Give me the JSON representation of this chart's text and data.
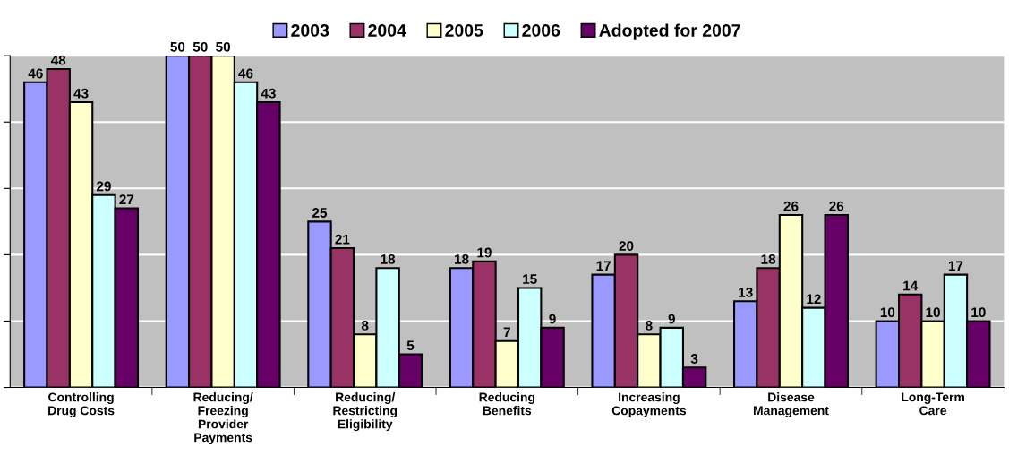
{
  "chart_data": {
    "type": "bar",
    "categories": [
      "Controlling\nDrug Costs",
      "Reducing/\nFreezing\nProvider\nPayments",
      "Reducing/\nRestricting\nEligibility",
      "Reducing\nBenefits",
      "Increasing\nCopayments",
      "Disease\nManagement",
      "Long-Term\nCare"
    ],
    "series": [
      {
        "name": "2003",
        "color": "#9999ff",
        "values": [
          46,
          50,
          25,
          18,
          17,
          13,
          10
        ]
      },
      {
        "name": "2004",
        "color": "#993366",
        "values": [
          48,
          50,
          21,
          19,
          20,
          18,
          14
        ]
      },
      {
        "name": "2005",
        "color": "#ffffcc",
        "values": [
          43,
          50,
          8,
          7,
          8,
          26,
          10
        ]
      },
      {
        "name": "2006",
        "color": "#ccffff",
        "values": [
          29,
          46,
          18,
          15,
          9,
          12,
          17
        ]
      },
      {
        "name": "Adopted for 2007",
        "color": "#660066",
        "values": [
          27,
          43,
          5,
          9,
          3,
          26,
          10
        ]
      }
    ],
    "ylim": [
      0,
      50
    ],
    "yticks": [
      {
        "value": 0,
        "label": null
      },
      {
        "value": 10,
        "label": null
      },
      {
        "value": 20,
        "label": null
      },
      {
        "value": 30,
        "label": null
      },
      {
        "value": 40,
        "label": null
      },
      {
        "value": 50,
        "label": null
      }
    ],
    "tick_labels": "x",
    "grid": "y",
    "legend": "top",
    "data_labels": true
  }
}
